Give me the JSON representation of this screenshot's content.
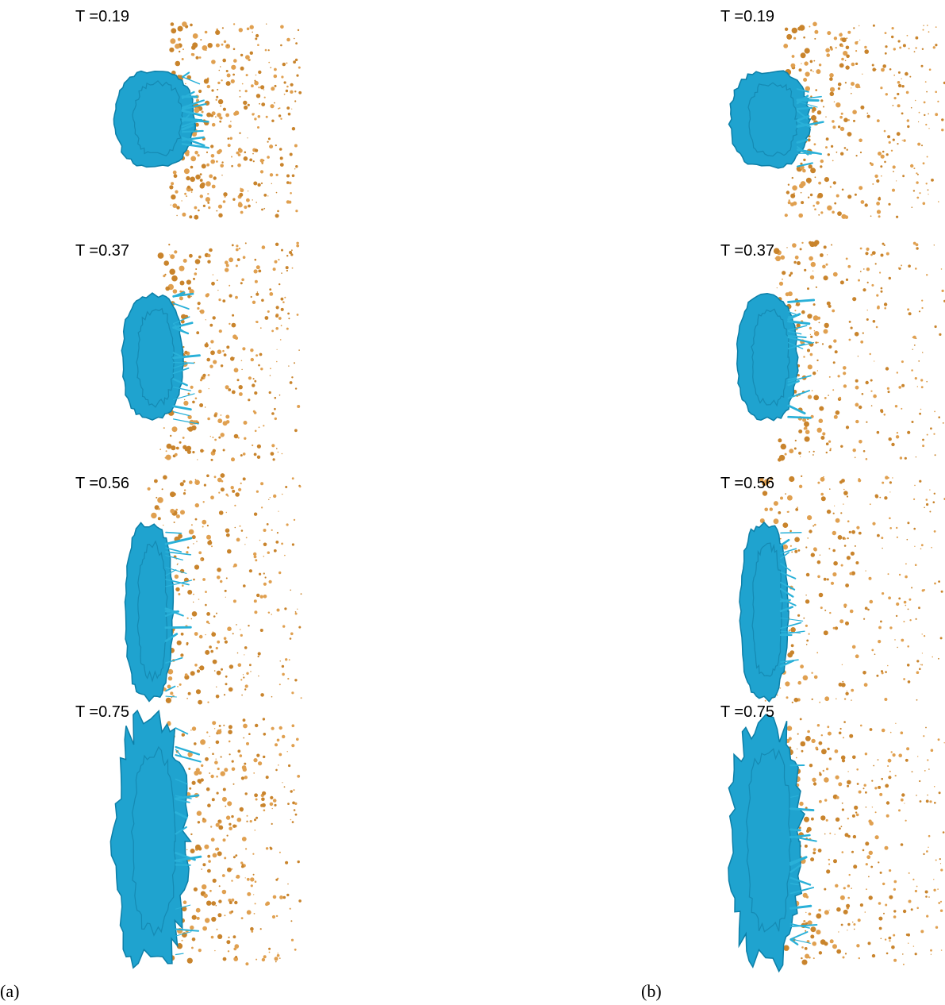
{
  "panels": [
    {
      "caption": "(a)",
      "frames": [
        {
          "label": "T =0.19"
        },
        {
          "label": "T =0.37"
        },
        {
          "label": "T =0.56"
        },
        {
          "label": "T =0.75"
        }
      ]
    },
    {
      "caption": "(b)",
      "frames": [
        {
          "label": "T =0.19"
        },
        {
          "label": "T =0.37"
        },
        {
          "label": "T =0.56"
        },
        {
          "label": "T =0.75"
        }
      ]
    }
  ]
}
